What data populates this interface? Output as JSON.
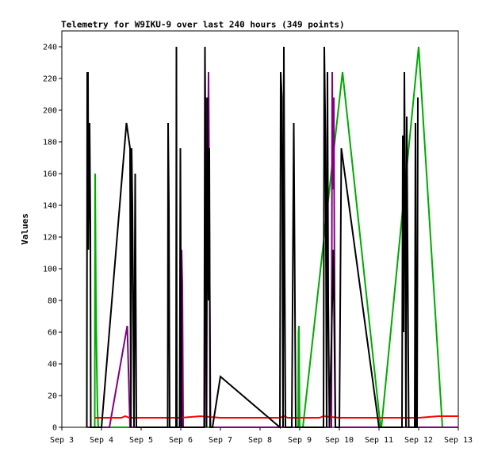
{
  "chart_data": {
    "type": "line",
    "title": "Telemetry for W9IKU-9 over last 240 hours (349 points)",
    "xlabel": "",
    "ylabel": "Values",
    "xlim": [
      0,
      10
    ],
    "ylim": [
      0,
      250
    ],
    "x_unit": "days from Sep 3",
    "x_ticks": [
      0,
      1,
      2,
      3,
      4,
      5,
      6,
      7,
      8,
      9,
      10
    ],
    "x_tick_labels": [
      "Sep 3",
      "Sep 4",
      "Sep 5",
      "Sep 6",
      "Sep 7",
      "Sep 8",
      "Sep 9",
      "Sep 10",
      "Sep 11",
      "Sep 12",
      "Sep 13"
    ],
    "y_ticks": [
      0,
      20,
      40,
      60,
      80,
      100,
      120,
      140,
      160,
      180,
      200,
      220,
      240
    ],
    "grid": false,
    "legend": "none",
    "series": [
      {
        "color": "#0000cc",
        "x": [
          0.63,
          1.0
        ],
        "y": [
          0,
          0
        ]
      },
      {
        "color": "#00aa00",
        "x": [
          0.63,
          0.83,
          0.84,
          0.86,
          0.88,
          0.9,
          0.92,
          5.96,
          5.97,
          5.98,
          5.99,
          6.0,
          6.01,
          6.08,
          7.08,
          8.04,
          8.06,
          9.0,
          9.6
        ],
        "y": [
          0,
          0,
          160,
          80,
          40,
          10,
          0,
          0,
          60,
          64,
          30,
          0,
          0,
          0,
          224,
          0,
          0,
          240,
          0
        ]
      },
      {
        "color": "#800080",
        "x": [
          0.63,
          1.2,
          1.65,
          1.72,
          2.9,
          3.0,
          3.02,
          3.04,
          3.06,
          3.6,
          3.65,
          3.68,
          3.7,
          3.72,
          3.75,
          4.0,
          4.5,
          5.0,
          5.5,
          6.0,
          6.6,
          6.8,
          6.82,
          6.84,
          6.86,
          6.88,
          6.9,
          7.0,
          8.0,
          9.0,
          10.0
        ],
        "y": [
          0,
          0,
          64,
          0,
          0,
          0,
          112,
          90,
          0,
          0,
          208,
          150,
          224,
          140,
          0,
          0,
          0,
          0,
          0,
          0,
          0,
          0,
          224,
          150,
          208,
          80,
          0,
          0,
          0,
          0,
          0
        ]
      },
      {
        "color": "#ff0000",
        "x": [
          0.83,
          1.2,
          1.5,
          1.6,
          1.7,
          2.0,
          2.5,
          3.0,
          3.5,
          4.0,
          4.5,
          5.0,
          5.5,
          5.6,
          5.7,
          6.0,
          6.5,
          6.6,
          7.0,
          7.5,
          8.0,
          8.5,
          9.0,
          9.5,
          9.7,
          10.0
        ],
        "y": [
          6,
          6,
          6,
          7,
          6,
          6,
          6,
          6,
          7,
          6,
          6,
          6,
          6,
          7,
          6,
          6,
          6,
          7,
          6,
          6,
          6,
          6,
          6,
          7,
          7,
          7
        ]
      },
      {
        "color": "#000000",
        "x": [
          0.63,
          0.64,
          0.65,
          0.66,
          0.67,
          0.7,
          0.72,
          0.73,
          0.74,
          0.75,
          0.77,
          0.8,
          1.0,
          1.63,
          1.72,
          1.74,
          1.76,
          1.78,
          1.82,
          1.85,
          1.88,
          1.9,
          2.67,
          2.68,
          2.7,
          2.72,
          2.88,
          2.89,
          2.9,
          2.97,
          2.99,
          3.0,
          3.02,
          3.5,
          3.59,
          3.61,
          3.63,
          3.65,
          3.67,
          3.7,
          3.72,
          3.74,
          3.76,
          3.8,
          4.0,
          5.5,
          5.52,
          5.55,
          5.58,
          5.6,
          5.62,
          5.64,
          5.66,
          5.68,
          5.8,
          5.85,
          5.9,
          5.95,
          6.0,
          6.5,
          6.6,
          6.62,
          6.65,
          6.68,
          6.7,
          6.72,
          6.75,
          6.78,
          6.85,
          6.9,
          6.95,
          6.98,
          7.0,
          7.05,
          8.0,
          8.5,
          8.58,
          8.6,
          8.62,
          8.64,
          8.66,
          8.68,
          8.7,
          8.75,
          8.9,
          8.92,
          8.94,
          8.96,
          8.98
        ],
        "y": [
          0,
          224,
          192,
          224,
          112,
          192,
          128,
          0,
          0,
          0,
          0,
          0,
          0,
          192,
          176,
          0,
          176,
          140,
          0,
          160,
          0,
          0,
          0,
          192,
          140,
          0,
          0,
          240,
          0,
          0,
          176,
          110,
          0,
          0,
          0,
          240,
          140,
          0,
          208,
          80,
          176,
          0,
          0,
          0,
          32,
          0,
          224,
          208,
          0,
          240,
          104,
          0,
          0,
          0,
          0,
          192,
          0,
          0,
          0,
          0,
          0,
          240,
          180,
          0,
          224,
          80,
          0,
          32,
          112,
          0,
          0,
          0,
          0,
          176,
          0,
          0,
          0,
          184,
          60,
          224,
          140,
          0,
          196,
          0,
          0,
          192,
          0,
          0,
          208
        ]
      }
    ]
  }
}
